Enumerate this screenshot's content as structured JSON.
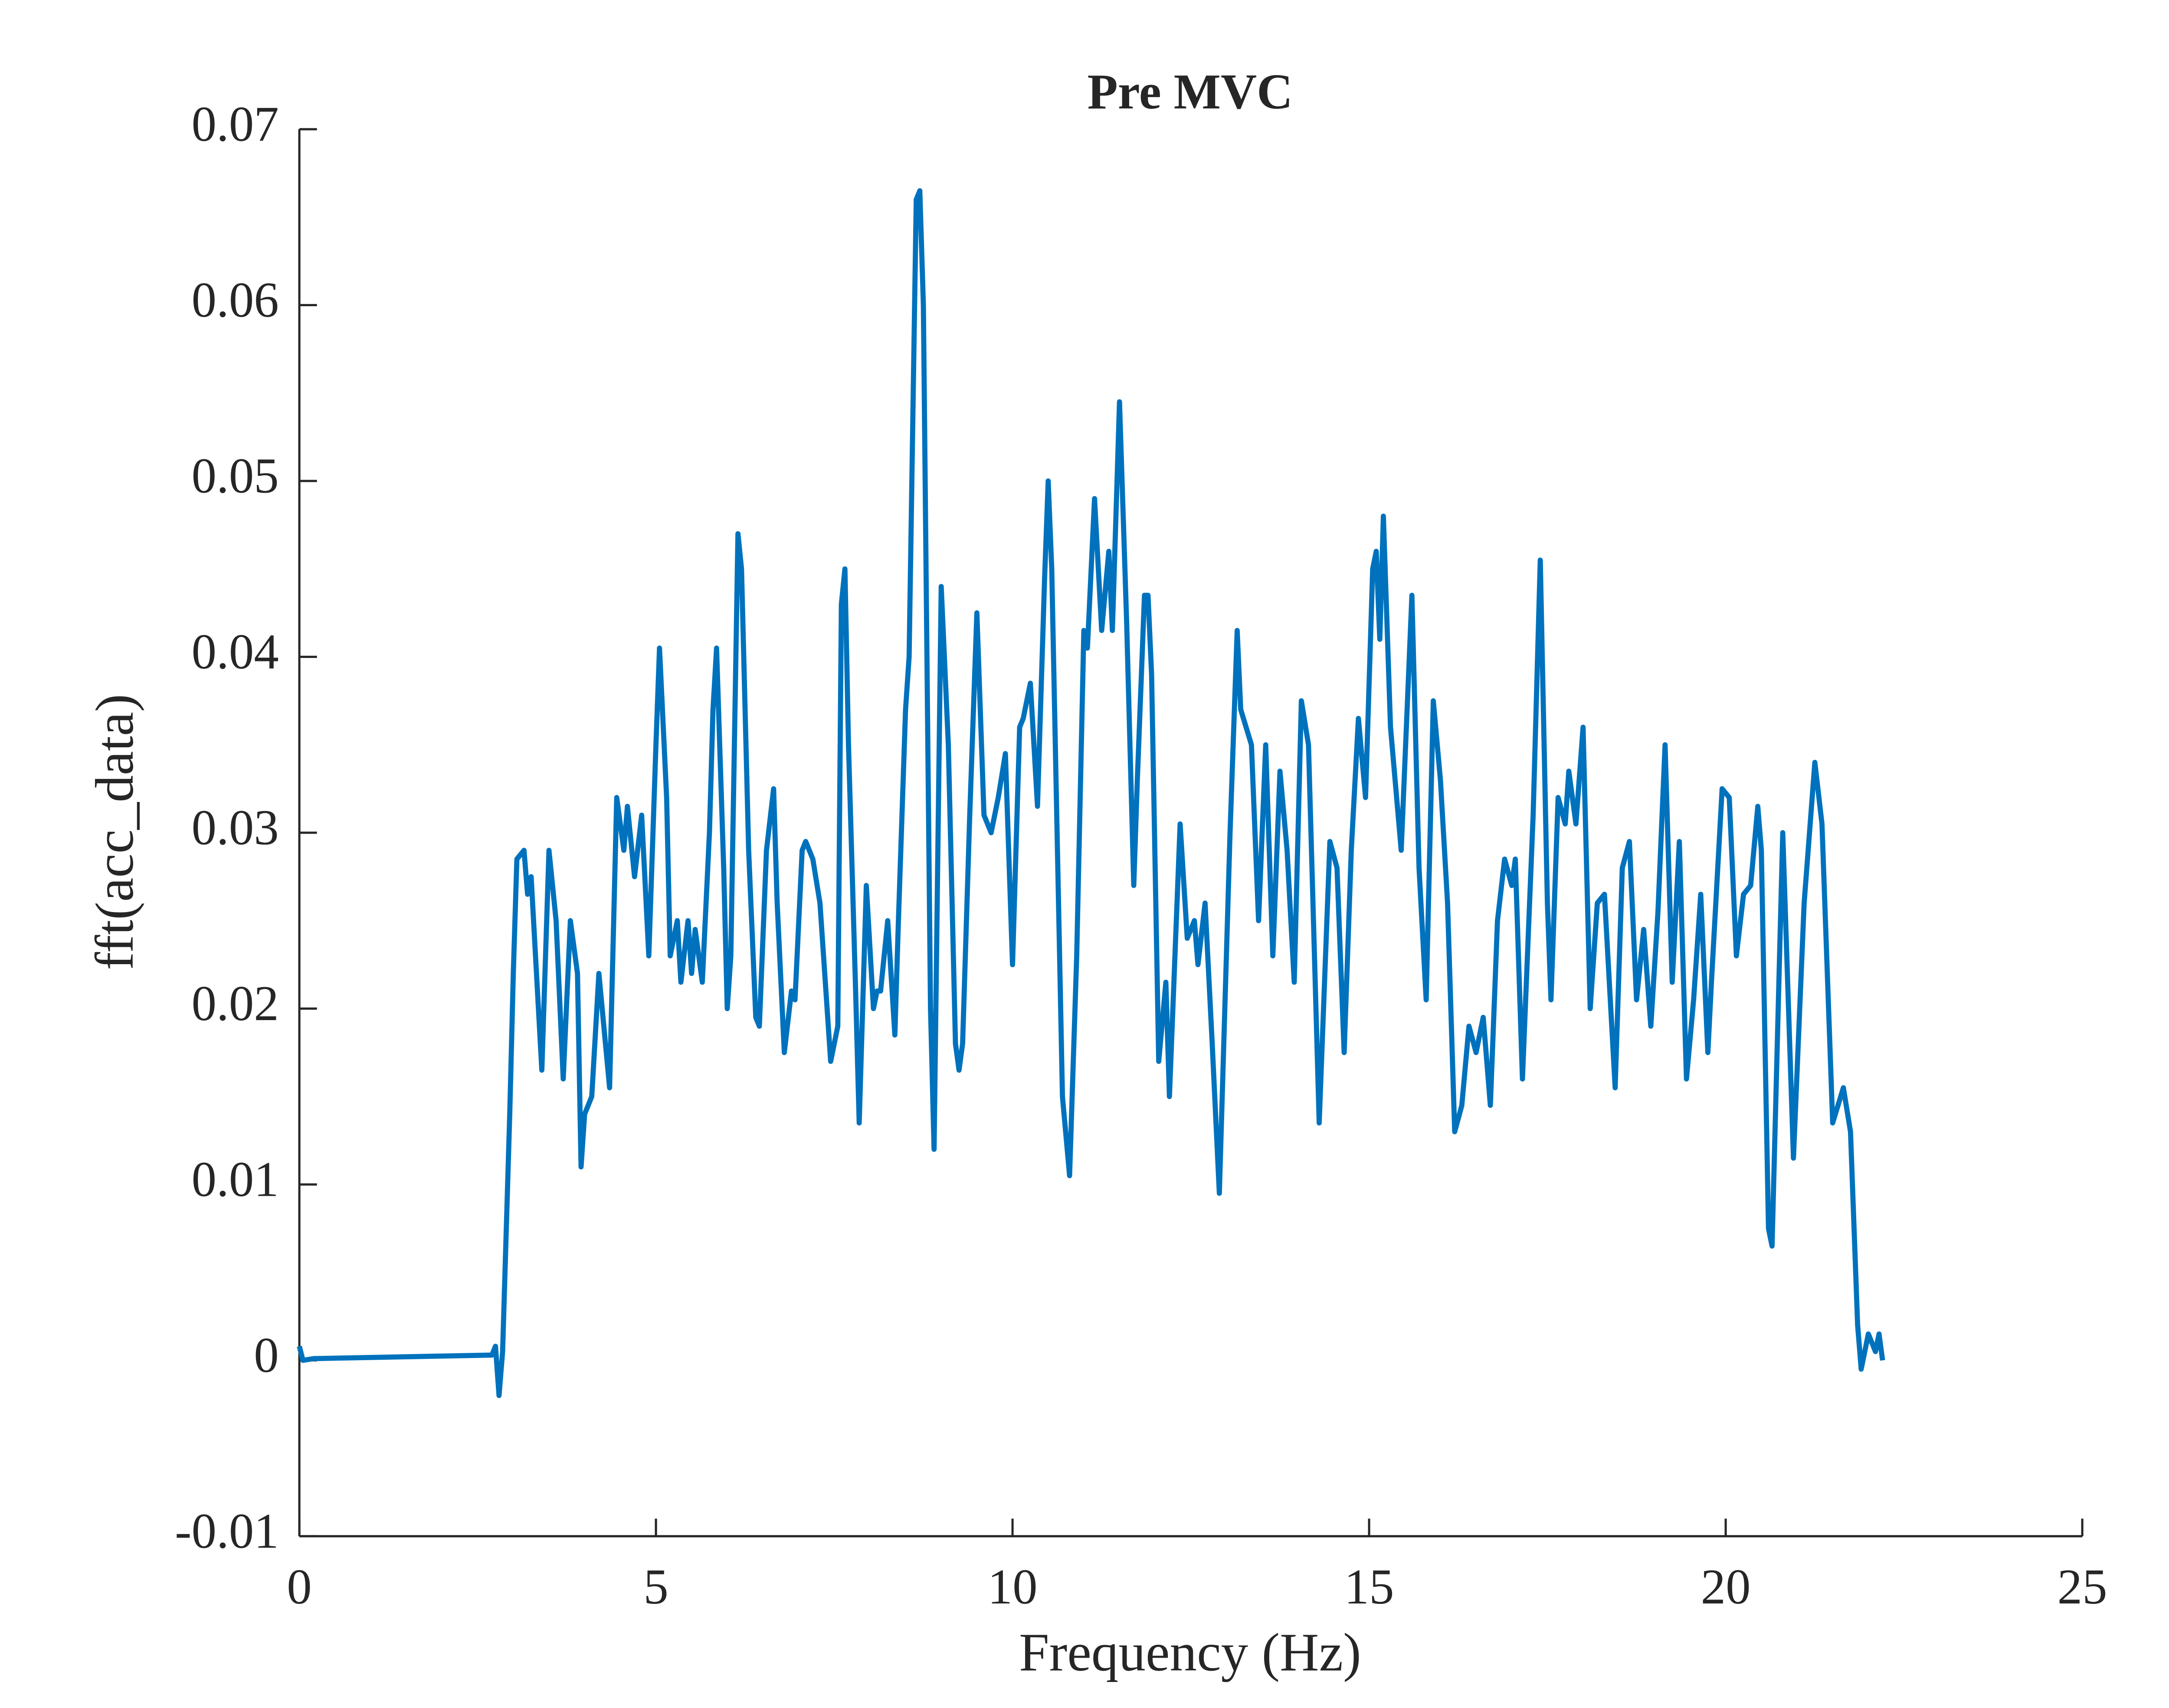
{
  "chart_data": {
    "type": "line",
    "title": "Pre MVC",
    "x_label": "Frequency (Hz)",
    "y_label": "fft(acc_data)",
    "x": [
      0,
      0.05,
      0.2,
      2.7,
      2.75,
      2.8,
      2.85,
      2.95,
      3.0,
      3.05,
      3.15,
      3.2,
      3.25,
      3.4,
      3.5,
      3.6,
      3.7,
      3.8,
      3.9,
      3.95,
      4.0,
      4.1,
      4.2,
      4.35,
      4.45,
      4.55,
      4.6,
      4.7,
      4.8,
      4.9,
      5.0,
      5.05,
      5.15,
      5.2,
      5.3,
      5.35,
      5.45,
      5.5,
      5.55,
      5.65,
      5.75,
      5.8,
      5.85,
      5.95,
      6.0,
      6.05,
      6.15,
      6.2,
      6.3,
      6.4,
      6.45,
      6.55,
      6.65,
      6.7,
      6.8,
      6.9,
      6.95,
      7.05,
      7.1,
      7.2,
      7.3,
      7.4,
      7.45,
      7.55,
      7.6,
      7.65,
      7.7,
      7.8,
      7.85,
      7.95,
      8.05,
      8.1,
      8.15,
      8.25,
      8.35,
      8.4,
      8.5,
      8.55,
      8.65,
      8.7,
      8.75,
      8.85,
      8.9,
      9.0,
      9.1,
      9.2,
      9.25,
      9.3,
      9.4,
      9.5,
      9.6,
      9.7,
      9.8,
      9.9,
      10.0,
      10.1,
      10.15,
      10.25,
      10.35,
      10.45,
      10.5,
      10.55,
      10.7,
      10.8,
      10.9,
      11.0,
      11.05,
      11.15,
      11.25,
      11.35,
      11.4,
      11.5,
      11.6,
      11.7,
      11.75,
      11.85,
      11.9,
      11.95,
      12.05,
      12.15,
      12.2,
      12.35,
      12.45,
      12.55,
      12.6,
      12.7,
      12.8,
      12.9,
      13.05,
      13.15,
      13.2,
      13.35,
      13.45,
      13.55,
      13.65,
      13.75,
      13.85,
      13.95,
      14.05,
      14.15,
      14.3,
      14.45,
      14.55,
      14.65,
      14.75,
      14.85,
      14.95,
      15.05,
      15.1,
      15.15,
      15.2,
      15.3,
      15.45,
      15.6,
      15.7,
      15.8,
      15.9,
      16.0,
      16.1,
      16.2,
      16.3,
      16.4,
      16.5,
      16.6,
      16.7,
      16.8,
      16.9,
      17.0,
      17.05,
      17.15,
      17.3,
      17.4,
      17.5,
      17.55,
      17.65,
      17.75,
      17.8,
      17.9,
      18.0,
      18.1,
      18.2,
      18.3,
      18.45,
      18.55,
      18.65,
      18.75,
      18.85,
      18.95,
      19.05,
      19.15,
      19.25,
      19.35,
      19.45,
      19.55,
      19.65,
      19.75,
      19.8,
      19.95,
      20.05,
      20.15,
      20.25,
      20.35,
      20.45,
      20.5,
      20.6,
      20.65,
      20.8,
      20.95,
      21.1,
      21.25,
      21.35,
      21.5,
      21.65,
      21.75,
      21.85,
      21.9,
      22.0,
      22.1,
      22.15,
      22.2
    ],
    "series": [
      {
        "name": "fft(acc_data)",
        "color": "#0072bd",
        "values": [
          0.0008,
          0,
          0.0001,
          0.0003,
          0.0008,
          -0.002,
          0.0005,
          0.014,
          0.022,
          0.0285,
          0.029,
          0.0265,
          0.0275,
          0.0165,
          0.029,
          0.025,
          0.016,
          0.025,
          0.022,
          0.011,
          0.014,
          0.015,
          0.022,
          0.0155,
          0.032,
          0.029,
          0.0315,
          0.0275,
          0.031,
          0.023,
          0.035,
          0.0405,
          0.032,
          0.023,
          0.025,
          0.0215,
          0.025,
          0.022,
          0.0245,
          0.0215,
          0.03,
          0.037,
          0.0405,
          0.028,
          0.02,
          0.023,
          0.047,
          0.045,
          0.029,
          0.0195,
          0.019,
          0.029,
          0.0325,
          0.026,
          0.0175,
          0.021,
          0.0205,
          0.029,
          0.0295,
          0.0285,
          0.026,
          0.02,
          0.017,
          0.019,
          0.043,
          0.045,
          0.035,
          0.021,
          0.0135,
          0.027,
          0.02,
          0.021,
          0.021,
          0.025,
          0.0185,
          0.025,
          0.037,
          0.04,
          0.066,
          0.0665,
          0.06,
          0.02,
          0.012,
          0.044,
          0.035,
          0.018,
          0.0165,
          0.018,
          0.031,
          0.0425,
          0.031,
          0.03,
          0.032,
          0.0345,
          0.0225,
          0.036,
          0.0365,
          0.0385,
          0.0315,
          0.0445,
          0.05,
          0.045,
          0.015,
          0.0105,
          0.023,
          0.0415,
          0.0405,
          0.049,
          0.0415,
          0.046,
          0.0415,
          0.0545,
          0.042,
          0.027,
          0.033,
          0.0435,
          0.0435,
          0.039,
          0.017,
          0.0215,
          0.015,
          0.0305,
          0.024,
          0.025,
          0.0225,
          0.026,
          0.018,
          0.0095,
          0.03,
          0.0415,
          0.037,
          0.035,
          0.025,
          0.035,
          0.023,
          0.0335,
          0.029,
          0.0215,
          0.0375,
          0.035,
          0.0135,
          0.0295,
          0.028,
          0.0175,
          0.029,
          0.0365,
          0.032,
          0.045,
          0.046,
          0.041,
          0.048,
          0.036,
          0.029,
          0.0435,
          0.028,
          0.0205,
          0.0375,
          0.033,
          0.026,
          0.013,
          0.0145,
          0.019,
          0.0175,
          0.0195,
          0.0145,
          0.025,
          0.0285,
          0.027,
          0.0285,
          0.016,
          0.031,
          0.0455,
          0.026,
          0.0205,
          0.032,
          0.0305,
          0.0335,
          0.0305,
          0.036,
          0.02,
          0.026,
          0.0265,
          0.0155,
          0.028,
          0.0295,
          0.0205,
          0.0245,
          0.019,
          0.0255,
          0.035,
          0.0215,
          0.0295,
          0.016,
          0.0205,
          0.0265,
          0.0175,
          0.0215,
          0.0325,
          0.032,
          0.023,
          0.0265,
          0.027,
          0.0315,
          0.029,
          0.0075,
          0.0065,
          0.03,
          0.0115,
          0.026,
          0.034,
          0.0305,
          0.0135,
          0.0155,
          0.013,
          0.002,
          -0.0005,
          0.0015,
          0.0005,
          0.0015,
          0
        ]
      }
    ],
    "xlim": [
      0,
      25
    ],
    "xticks": [
      0,
      5,
      10,
      15,
      20,
      25
    ],
    "ylim": [
      -0.01,
      0.07
    ],
    "yticks": [
      -0.01,
      0,
      0.01,
      0.02,
      0.03,
      0.04,
      0.05,
      0.06,
      0.07
    ]
  }
}
